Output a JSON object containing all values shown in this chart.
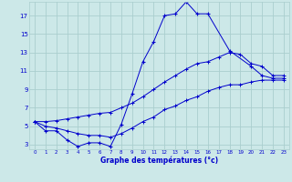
{
  "title": "Graphe des températures (°c)",
  "bg_color": "#cce8e8",
  "grid_color": "#aacece",
  "line_color": "#0000cc",
  "x_hours": [
    0,
    1,
    2,
    3,
    4,
    5,
    6,
    7,
    8,
    9,
    10,
    11,
    12,
    13,
    14,
    15,
    16,
    17,
    18,
    19,
    20,
    21,
    22,
    23
  ],
  "temp_actual": [
    5.5,
    4.5,
    4.5,
    3.5,
    2.8,
    3.2,
    3.2,
    2.8,
    5.2,
    8.5,
    12.0,
    14.2,
    17.0,
    17.2,
    18.5,
    17.2,
    17.2,
    null,
    13.2,
    null,
    11.5,
    10.5,
    10.2,
    10.2
  ],
  "temp_max": [
    5.5,
    5.5,
    5.6,
    5.8,
    6.0,
    6.2,
    6.4,
    6.5,
    7.0,
    7.5,
    8.2,
    9.0,
    9.8,
    10.5,
    11.2,
    11.8,
    12.0,
    12.5,
    13.0,
    12.8,
    11.8,
    11.5,
    10.5,
    10.5
  ],
  "temp_min": [
    5.5,
    5.0,
    4.8,
    4.5,
    4.2,
    4.0,
    4.0,
    3.8,
    4.2,
    4.8,
    5.5,
    6.0,
    6.8,
    7.2,
    7.8,
    8.2,
    8.8,
    9.2,
    9.5,
    9.5,
    9.8,
    10.0,
    10.0,
    10.0
  ],
  "ylim": [
    2.5,
    18.5
  ],
  "yticks": [
    3,
    5,
    7,
    9,
    11,
    13,
    15,
    17
  ],
  "xlim": [
    -0.5,
    23.5
  ]
}
